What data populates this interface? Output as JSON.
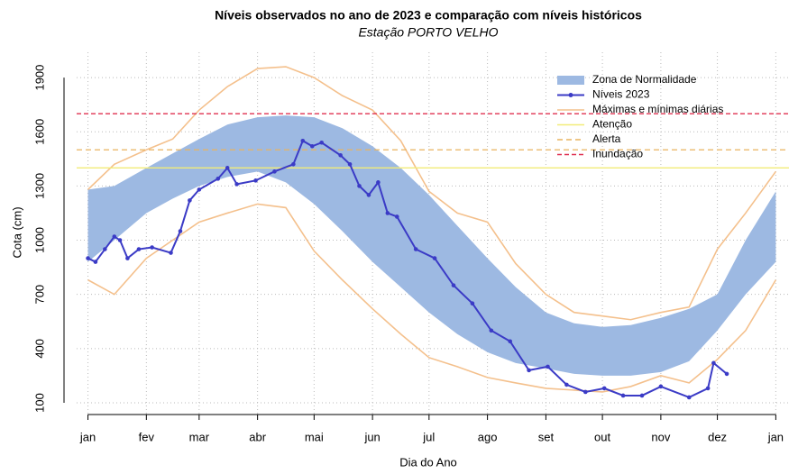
{
  "chart_data": {
    "type": "line",
    "title": "Níveis observados no ano de 2023 e comparação com níveis históricos",
    "subtitle": "Estação PORTO VELHO",
    "x_label": "Dia do Ano",
    "y_label": "Cota (cm)",
    "xlim": [
      -5,
      373
    ],
    "ylim": [
      35,
      2040
    ],
    "xticks": [
      {
        "value": 1,
        "label": "jan"
      },
      {
        "value": 32,
        "label": "fev"
      },
      {
        "value": 60,
        "label": "mar"
      },
      {
        "value": 91,
        "label": "abr"
      },
      {
        "value": 121,
        "label": "mai"
      },
      {
        "value": 152,
        "label": "jun"
      },
      {
        "value": 182,
        "label": "jul"
      },
      {
        "value": 213,
        "label": "ago"
      },
      {
        "value": 244,
        "label": "set"
      },
      {
        "value": 274,
        "label": "out"
      },
      {
        "value": 305,
        "label": "nov"
      },
      {
        "value": 335,
        "label": "dez"
      },
      {
        "value": 366,
        "label": "jan"
      }
    ],
    "yticks": [
      100,
      400,
      700,
      1000,
      1300,
      1600,
      1900
    ],
    "grid": true,
    "series": [
      {
        "name": "Zona de Normalidade",
        "kind": "band",
        "color": "#9db9e2",
        "x": [
          1,
          15,
          32,
          46,
          60,
          75,
          91,
          106,
          121,
          136,
          152,
          167,
          182,
          197,
          213,
          228,
          244,
          259,
          274,
          289,
          305,
          320,
          335,
          350,
          366
        ],
        "high": [
          1280,
          1300,
          1400,
          1480,
          1560,
          1640,
          1680,
          1690,
          1680,
          1620,
          1520,
          1400,
          1250,
          1080,
          900,
          740,
          600,
          540,
          520,
          530,
          570,
          620,
          700,
          1000,
          1270
        ],
        "low": [
          880,
          1000,
          1150,
          1230,
          1300,
          1350,
          1380,
          1320,
          1200,
          1050,
          880,
          740,
          600,
          480,
          380,
          320,
          290,
          260,
          250,
          250,
          270,
          330,
          500,
          700,
          880
        ]
      },
      {
        "name": "Níveis 2023",
        "kind": "line",
        "color": "#3b3bc6",
        "x": [
          1,
          5,
          10,
          15,
          18,
          22,
          28,
          35,
          45,
          50,
          55,
          60,
          70,
          75,
          80,
          90,
          100,
          110,
          115,
          120,
          125,
          135,
          140,
          145,
          150,
          155,
          160,
          165,
          175,
          185,
          195,
          205,
          215,
          225,
          235,
          245,
          255,
          265,
          275,
          285,
          295,
          305,
          320,
          330,
          333,
          340
        ],
        "values": [
          900,
          880,
          950,
          1020,
          1000,
          900,
          950,
          960,
          930,
          1050,
          1220,
          1280,
          1340,
          1400,
          1310,
          1330,
          1380,
          1420,
          1550,
          1520,
          1540,
          1470,
          1420,
          1300,
          1250,
          1320,
          1150,
          1130,
          950,
          900,
          750,
          650,
          500,
          440,
          280,
          300,
          200,
          160,
          180,
          140,
          140,
          190,
          130,
          180,
          320,
          260
        ]
      },
      {
        "name": "Máximas e mínimas diárias",
        "kind": "range",
        "color": "#f4c08c",
        "x": [
          1,
          15,
          32,
          46,
          60,
          75,
          91,
          106,
          121,
          136,
          152,
          167,
          182,
          197,
          213,
          228,
          244,
          259,
          274,
          289,
          305,
          320,
          335,
          350,
          366
        ],
        "max": [
          1280,
          1420,
          1500,
          1560,
          1720,
          1850,
          1950,
          1960,
          1900,
          1800,
          1720,
          1550,
          1270,
          1150,
          1100,
          870,
          700,
          600,
          580,
          560,
          600,
          630,
          950,
          1150,
          1380
        ],
        "min": [
          780,
          700,
          900,
          1000,
          1100,
          1150,
          1200,
          1180,
          940,
          780,
          620,
          480,
          350,
          300,
          240,
          210,
          180,
          170,
          160,
          190,
          250,
          210,
          340,
          500,
          780
        ]
      },
      {
        "name": "Atenção",
        "kind": "hline",
        "color": "#f2ec78",
        "value": 1400
      },
      {
        "name": "Alerta",
        "kind": "hline",
        "color": "#e9b35e",
        "value": 1500
      },
      {
        "name": "Inundação",
        "kind": "hline",
        "color": "#df3050",
        "value": 1700
      }
    ]
  }
}
